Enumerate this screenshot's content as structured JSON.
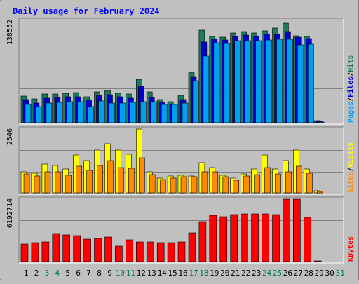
{
  "chart_data": [
    {
      "type": "bar",
      "title": "Daily usage for February 2024",
      "panel": "top",
      "categories": [
        "1",
        "2",
        "3",
        "4",
        "5",
        "6",
        "7",
        "8",
        "9",
        "10",
        "11",
        "12",
        "13",
        "14",
        "15",
        "16",
        "17",
        "18",
        "19",
        "20",
        "21",
        "22",
        "23",
        "24",
        "25",
        "26",
        "27",
        "28",
        "29",
        "30",
        "31"
      ],
      "max_label": "138552",
      "ylim": [
        0,
        138552
      ],
      "right_labels": [
        "Pages",
        "Files",
        "Hits"
      ],
      "series": [
        {
          "name": "Hits",
          "color": "#1a7c5c",
          "values": [
            36500,
            32000,
            39000,
            39000,
            40000,
            40500,
            35000,
            42000,
            43500,
            40000,
            39000,
            59000,
            42000,
            31000,
            28000,
            37000,
            68000,
            125000,
            117000,
            116000,
            121000,
            123000,
            121000,
            124000,
            128000,
            135000,
            118000,
            117000,
            3000,
            null,
            null
          ]
        },
        {
          "name": "Files",
          "color": "#0000d0",
          "values": [
            31000,
            27000,
            33500,
            34500,
            35000,
            35000,
            30000,
            37000,
            37500,
            35000,
            33500,
            49000,
            34000,
            27500,
            25000,
            31000,
            62000,
            109000,
            113000,
            112000,
            117000,
            119000,
            117000,
            120000,
            120000,
            123000,
            116000,
            114000,
            2200,
            null,
            null
          ]
        },
        {
          "name": "Pages",
          "color": "#00a0f0",
          "values": [
            24500,
            22000,
            26500,
            27500,
            28000,
            28500,
            21500,
            29500,
            27000,
            27000,
            27500,
            28000,
            28000,
            25000,
            24500,
            27000,
            57000,
            90000,
            108000,
            107000,
            111000,
            111000,
            111000,
            112000,
            113000,
            113000,
            105000,
            106000,
            1200,
            null,
            null
          ]
        }
      ]
    },
    {
      "type": "bar",
      "panel": "middle",
      "categories": [
        "1",
        "2",
        "3",
        "4",
        "5",
        "6",
        "7",
        "8",
        "9",
        "10",
        "11",
        "12",
        "13",
        "14",
        "15",
        "16",
        "17",
        "18",
        "19",
        "20",
        "21",
        "22",
        "23",
        "24",
        "25",
        "26",
        "27",
        "28",
        "29",
        "30",
        "31"
      ],
      "max_label": "2546",
      "ylim": [
        0,
        2546
      ],
      "right_labels": [
        "Sites",
        "Visits"
      ],
      "series": [
        {
          "name": "Visits",
          "color": "#ffff00",
          "values": [
            850,
            780,
            1150,
            1100,
            950,
            1500,
            1300,
            1700,
            1950,
            1700,
            1550,
            2546,
            850,
            600,
            680,
            700,
            680,
            1200,
            1000,
            700,
            600,
            750,
            950,
            1500,
            950,
            1300,
            1700,
            960,
            70,
            null,
            null
          ]
        },
        {
          "name": "Sites",
          "color": "#ff8c00",
          "values": [
            750,
            680,
            830,
            850,
            700,
            1050,
            900,
            1100,
            1300,
            1000,
            990,
            1400,
            720,
            520,
            580,
            640,
            640,
            830,
            830,
            630,
            510,
            680,
            720,
            1000,
            750,
            850,
            1050,
            780,
            50,
            null,
            null
          ]
        }
      ]
    },
    {
      "type": "bar",
      "panel": "bottom",
      "categories": [
        "1",
        "2",
        "3",
        "4",
        "5",
        "6",
        "7",
        "8",
        "9",
        "10",
        "11",
        "12",
        "13",
        "14",
        "15",
        "16",
        "17",
        "18",
        "19",
        "20",
        "21",
        "22",
        "23",
        "24",
        "25",
        "26",
        "27",
        "28",
        "29",
        "30",
        "31"
      ],
      "max_label": "6192714",
      "ylim": [
        0,
        6192714
      ],
      "right_labels": [
        "KBytes"
      ],
      "series": [
        {
          "name": "KBytes",
          "color": "#ff0000",
          "values": [
            1720000,
            1870000,
            1950000,
            2750000,
            2650000,
            2570000,
            2230000,
            2290000,
            2450000,
            1560000,
            2190000,
            1960000,
            1960000,
            1900000,
            1900000,
            1920000,
            2870000,
            3980000,
            4560000,
            4480000,
            4630000,
            4730000,
            4710000,
            4760000,
            4640000,
            6192714,
            6192714,
            4350000,
            60000,
            null,
            null
          ]
        }
      ]
    }
  ],
  "colors": {
    "background": "#c0c0c0",
    "title": "#0000ff",
    "day_normal": "#000000",
    "day_weekend": "#008040",
    "gridline": "#808080"
  }
}
